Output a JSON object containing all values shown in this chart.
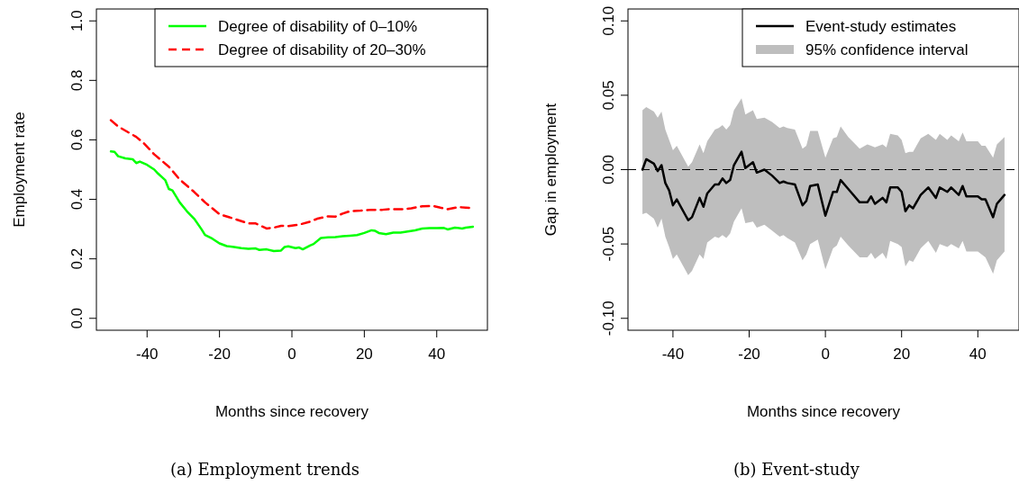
{
  "chart_data": [
    {
      "type": "line",
      "title": "(a) Employment trends",
      "xlabel": "Months since recovery",
      "ylabel": "Employment rate",
      "xlim": [
        -54,
        54
      ],
      "ylim": [
        -0.04,
        1.04
      ],
      "xticks": [
        -40,
        -20,
        0,
        20,
        40
      ],
      "yticks": [
        {
          "value": 0,
          "label": "0.0"
        },
        {
          "value": 0.2,
          "label": "0.2"
        },
        {
          "value": 0.4,
          "label": "0.4"
        },
        {
          "value": 0.6,
          "label": "0.6"
        },
        {
          "value": 0.8,
          "label": "0.8"
        },
        {
          "value": 1,
          "label": "1.0"
        }
      ],
      "grid": false,
      "legend": "top right",
      "series": [
        {
          "name": "Degree of disability of 0–10%",
          "color": "#00ff00",
          "line_style": "solid",
          "x": [
            -50,
            -49,
            -48,
            -46,
            -44,
            -43,
            -42,
            -40,
            -38,
            -37,
            -35,
            -34,
            -33,
            -31,
            -29,
            -27,
            -25,
            -24,
            -22,
            -20,
            -18,
            -16,
            -14,
            -12,
            -10,
            -9,
            -7,
            -5,
            -3,
            -2,
            -1,
            1,
            2,
            3,
            5,
            6,
            8,
            10,
            12,
            14,
            16,
            18,
            20,
            22,
            23,
            24,
            26,
            28,
            30,
            32,
            34,
            36,
            38,
            40,
            42,
            43,
            45,
            47,
            48,
            50
          ],
          "values": [
            0.561,
            0.56,
            0.545,
            0.538,
            0.535,
            0.522,
            0.527,
            0.516,
            0.5,
            0.487,
            0.465,
            0.435,
            0.43,
            0.39,
            0.36,
            0.335,
            0.3,
            0.28,
            0.268,
            0.252,
            0.243,
            0.24,
            0.236,
            0.234,
            0.235,
            0.23,
            0.232,
            0.226,
            0.228,
            0.24,
            0.242,
            0.236,
            0.238,
            0.232,
            0.245,
            0.25,
            0.27,
            0.272,
            0.273,
            0.276,
            0.278,
            0.28,
            0.287,
            0.296,
            0.294,
            0.287,
            0.283,
            0.288,
            0.288,
            0.292,
            0.296,
            0.302,
            0.303,
            0.303,
            0.304,
            0.299,
            0.305,
            0.302,
            0.305,
            0.308
          ]
        },
        {
          "name": "Degree of disability of 20–30%",
          "color": "#ff0000",
          "line_style": "dashed",
          "x": [
            -50,
            -48,
            -45,
            -43,
            -41,
            -38,
            -34,
            -31,
            -27,
            -24,
            -20,
            -16,
            -12,
            -10,
            -7,
            -5,
            -3,
            -1,
            2,
            5,
            7,
            10,
            12,
            14,
            16,
            19,
            22,
            25,
            27,
            31,
            33,
            36,
            39,
            41,
            43,
            46,
            48,
            50
          ],
          "values": [
            0.666,
            0.645,
            0.624,
            0.61,
            0.59,
            0.551,
            0.51,
            0.467,
            0.425,
            0.39,
            0.35,
            0.335,
            0.319,
            0.319,
            0.302,
            0.305,
            0.311,
            0.31,
            0.315,
            0.325,
            0.335,
            0.343,
            0.342,
            0.352,
            0.36,
            0.362,
            0.365,
            0.365,
            0.367,
            0.367,
            0.37,
            0.377,
            0.378,
            0.372,
            0.367,
            0.374,
            0.372,
            0.37
          ]
        }
      ]
    },
    {
      "type": "line",
      "title": "(b) Event-study",
      "xlabel": "Months since recovery",
      "ylabel": "Gap in employment",
      "xlim": [
        -51.8,
        50.8
      ],
      "ylim": [
        -0.108,
        0.108
      ],
      "xticks": [
        -40,
        -20,
        0,
        20,
        40
      ],
      "yticks": [
        {
          "value": -0.1,
          "label": "-0.10"
        },
        {
          "value": -0.05,
          "label": "-0.05"
        },
        {
          "value": 0,
          "label": "0.00"
        },
        {
          "value": 0.05,
          "label": "0.05"
        },
        {
          "value": 0.1,
          "label": "0.10"
        }
      ],
      "grid": false,
      "legend": "top right",
      "annotations": [
        "95% confidence interval"
      ],
      "ref_lines": [
        {
          "axis": "y",
          "value": 0,
          "line_style": "dashed",
          "color": "#000000"
        }
      ],
      "series": [
        {
          "name": "Event-study estimates",
          "color": "#000000",
          "line_style": "solid",
          "upper": [
            0.04,
            0.042,
            0.039,
            0.035,
            0.039,
            0.027,
            0.02,
            0.013,
            0.016,
            0.002,
            0.005,
            0.017,
            0.011,
            0.019,
            0.027,
            0.028,
            0.03,
            0.027,
            0.03,
            0.04,
            0.048,
            0.037,
            0.04,
            0.034,
            0.035,
            0.032,
            0.028,
            0.029,
            0.028,
            0.027,
            0.014,
            0.016,
            0.026,
            0.026,
            0.008,
            0.021,
            0.022,
            0.029,
            0.022,
            0.014,
            0.017,
            0.016,
            0.015,
            0.017,
            0.015,
            0.024,
            0.023,
            0.02,
            0.011,
            0.012,
            0.012,
            0.021,
            0.024,
            0.02,
            0.024,
            0.02,
            0.023,
            0.019,
            0.025,
            0.019,
            0.019,
            0.016,
            0.016,
            0.008,
            0.017,
            0.022
          ],
          "lower": [
            -0.03,
            -0.029,
            -0.033,
            -0.039,
            -0.033,
            -0.045,
            -0.052,
            -0.06,
            -0.057,
            -0.071,
            -0.068,
            -0.057,
            -0.06,
            -0.049,
            -0.045,
            -0.046,
            -0.044,
            -0.046,
            -0.043,
            -0.035,
            -0.026,
            -0.036,
            -0.035,
            -0.039,
            -0.037,
            -0.041,
            -0.045,
            -0.044,
            -0.046,
            -0.049,
            -0.061,
            -0.057,
            -0.05,
            -0.047,
            -0.067,
            -0.053,
            -0.051,
            -0.045,
            -0.051,
            -0.059,
            -0.059,
            -0.056,
            -0.06,
            -0.056,
            -0.06,
            -0.048,
            -0.05,
            -0.052,
            -0.065,
            -0.061,
            -0.062,
            -0.053,
            -0.048,
            -0.056,
            -0.05,
            -0.052,
            -0.05,
            -0.053,
            -0.048,
            -0.055,
            -0.055,
            -0.057,
            -0.059,
            -0.07,
            -0.061,
            -0.055
          ],
          "x": [
            -48,
            -47,
            -45,
            -44,
            -43,
            -42,
            -41,
            -40,
            -39,
            -36,
            -35,
            -33,
            -32,
            -31,
            -29,
            -28,
            -27,
            -26,
            -25,
            -24,
            -22,
            -21,
            -19,
            -18,
            -16,
            -14,
            -12,
            -11,
            -10,
            -8,
            -6,
            -5,
            -4,
            -2,
            0,
            2,
            3,
            4,
            6,
            9,
            11,
            12,
            13,
            15,
            16,
            17,
            19,
            20,
            21,
            22,
            23,
            25,
            27,
            29,
            30,
            32,
            33,
            35,
            36,
            37,
            40,
            41,
            42,
            44,
            45,
            47
          ],
          "values": [
            0,
            0.007,
            0.004,
            -0.001,
            0.003,
            -0.009,
            -0.014,
            -0.024,
            -0.02,
            -0.034,
            -0.032,
            -0.019,
            -0.025,
            -0.016,
            -0.01,
            -0.01,
            -0.006,
            -0.009,
            -0.007,
            0.003,
            0.012,
            0.001,
            0.005,
            -0.002,
            0,
            -0.004,
            -0.009,
            -0.008,
            -0.009,
            -0.01,
            -0.024,
            -0.021,
            -0.011,
            -0.01,
            -0.031,
            -0.015,
            -0.015,
            -0.007,
            -0.013,
            -0.022,
            -0.022,
            -0.018,
            -0.023,
            -0.019,
            -0.022,
            -0.012,
            -0.012,
            -0.015,
            -0.028,
            -0.024,
            -0.026,
            -0.017,
            -0.012,
            -0.019,
            -0.012,
            -0.015,
            -0.012,
            -0.017,
            -0.011,
            -0.018,
            -0.018,
            -0.02,
            -0.02,
            -0.032,
            -0.023,
            -0.017
          ]
        }
      ]
    }
  ]
}
